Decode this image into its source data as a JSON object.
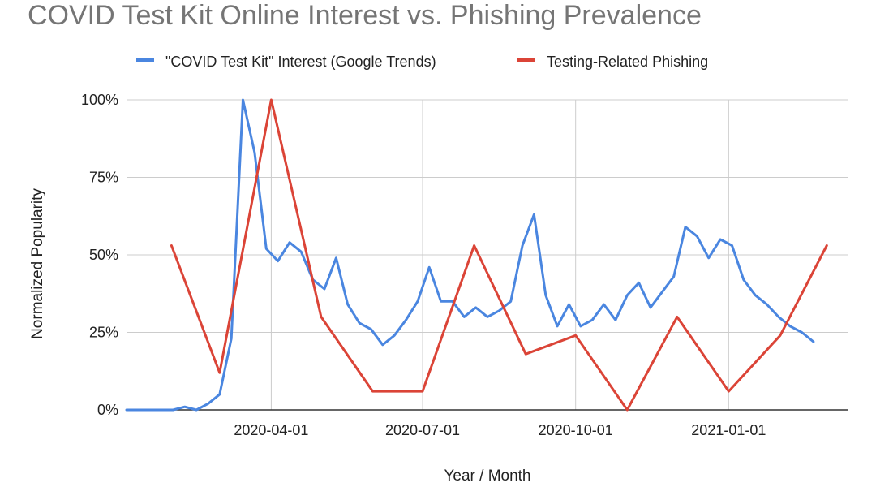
{
  "chart_data": {
    "type": "line",
    "title": "COVID Test Kit Online Interest vs. Phishing Prevalence",
    "xlabel": "Year / Month",
    "ylabel": "Normalized Popularity",
    "x_ticks": [
      "2020-04-01",
      "2020-07-01",
      "2020-10-01",
      "2021-01-01"
    ],
    "x_range": [
      "2020-01-05",
      "2021-03-14"
    ],
    "y_ticks": [
      "0%",
      "25%",
      "50%",
      "75%",
      "100%"
    ],
    "ylim": [
      0,
      100
    ],
    "grid": true,
    "legend_position": "top",
    "series": [
      {
        "name": "\"COVID Test Kit\" Interest (Google Trends)",
        "color": "#4a86e0",
        "x": [
          "2020-01-05",
          "2020-01-12",
          "2020-01-19",
          "2020-01-26",
          "2020-02-02",
          "2020-02-09",
          "2020-02-16",
          "2020-02-23",
          "2020-03-01",
          "2020-03-08",
          "2020-03-15",
          "2020-03-22",
          "2020-03-29",
          "2020-04-05",
          "2020-04-12",
          "2020-04-19",
          "2020-04-26",
          "2020-05-03",
          "2020-05-10",
          "2020-05-17",
          "2020-05-24",
          "2020-05-31",
          "2020-06-07",
          "2020-06-14",
          "2020-06-21",
          "2020-06-28",
          "2020-07-05",
          "2020-07-12",
          "2020-07-19",
          "2020-07-26",
          "2020-08-02",
          "2020-08-09",
          "2020-08-16",
          "2020-08-23",
          "2020-08-30",
          "2020-09-06",
          "2020-09-13",
          "2020-09-20",
          "2020-09-27",
          "2020-10-04",
          "2020-10-11",
          "2020-10-18",
          "2020-10-25",
          "2020-11-01",
          "2020-11-08",
          "2020-11-15",
          "2020-11-22",
          "2020-11-29",
          "2020-12-06",
          "2020-12-13",
          "2020-12-20",
          "2020-12-27",
          "2021-01-03",
          "2021-01-10",
          "2021-01-17",
          "2021-01-24",
          "2021-01-31",
          "2021-02-07",
          "2021-02-14",
          "2021-02-21",
          "2021-02-28",
          "2021-03-07",
          "2021-03-14"
        ],
        "values": [
          0,
          0,
          0,
          0,
          0,
          1,
          0,
          2,
          5,
          23,
          100,
          83,
          52,
          48,
          54,
          51,
          42,
          39,
          49,
          34,
          28,
          26,
          21,
          24,
          29,
          35,
          46,
          35,
          35,
          30,
          33,
          30,
          32,
          35,
          53,
          63,
          37,
          27,
          34,
          27,
          29,
          34,
          29,
          37,
          41,
          33,
          38,
          43,
          59,
          56,
          49,
          55,
          53,
          42,
          37,
          34,
          30,
          27,
          25,
          22,
          null,
          null,
          null
        ]
      },
      {
        "name": "Testing-Related Phishing",
        "color": "#db4437",
        "x": [
          "2020-02-01",
          "2020-03-01",
          "2020-04-01",
          "2020-05-01",
          "2020-06-01",
          "2020-07-01",
          "2020-08-01",
          "2020-09-01",
          "2020-10-01",
          "2020-11-01",
          "2020-12-01",
          "2021-01-01",
          "2021-02-01",
          "2021-03-01"
        ],
        "values": [
          53,
          12,
          100,
          30,
          6,
          6,
          53,
          18,
          24,
          0,
          30,
          6,
          24,
          53
        ]
      }
    ]
  }
}
